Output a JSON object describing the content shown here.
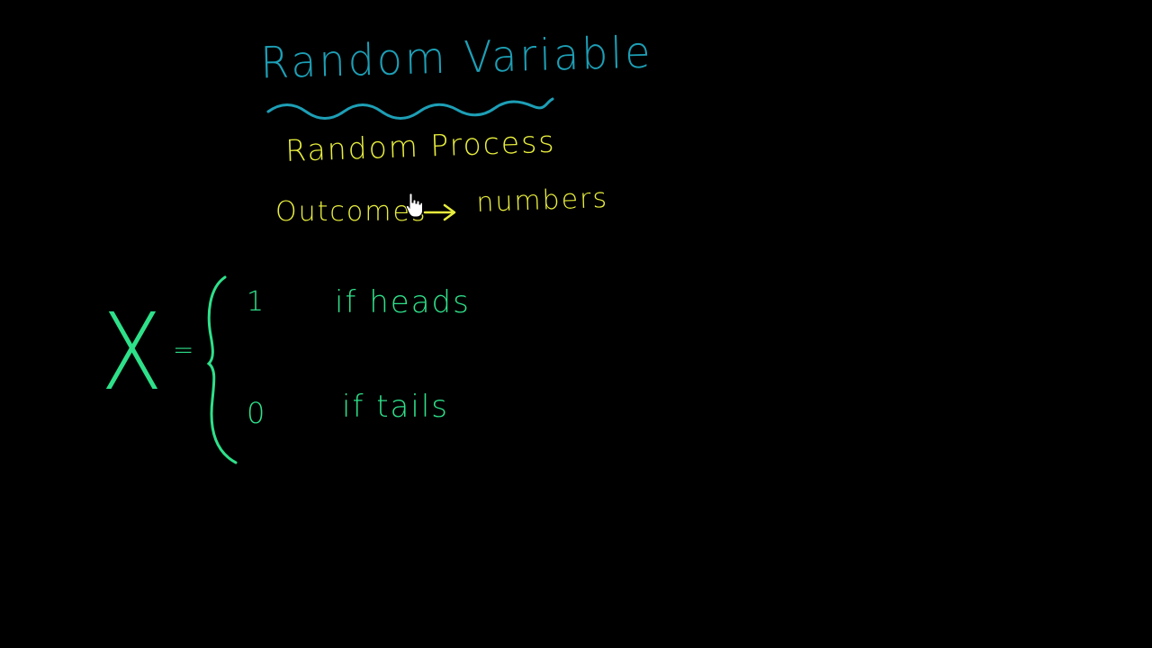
{
  "board": {
    "title": "Random Variable",
    "process_label": "Random Process",
    "outcomes_label": "Outcomes",
    "numbers_label": "numbers"
  },
  "definition": {
    "variable": "X",
    "equals": "=",
    "cases": [
      {
        "value": "1",
        "condition": "if heads"
      },
      {
        "value": "0",
        "condition": "if tails"
      }
    ]
  },
  "colors": {
    "background": "#000000",
    "title": "#1d9fb6",
    "yellow": "#e8ee3c",
    "green": "#2ee08a"
  },
  "icons": {
    "cursor": "hand-pointer-icon",
    "arrow": "right-arrow-icon",
    "underline": "wavy-underline-icon",
    "brace": "left-curly-brace-icon"
  }
}
